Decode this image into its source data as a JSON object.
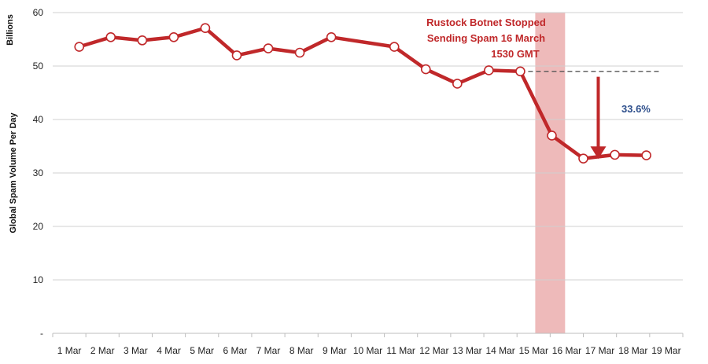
{
  "chart_data": {
    "type": "line",
    "title": "",
    "units_label": "Billions",
    "ylabel": "Global Spam  Volume Per Day",
    "xlabel": "",
    "ylim": [
      0,
      60
    ],
    "yticks": [
      {
        "value": 0,
        "label": "-"
      },
      {
        "value": 10,
        "label": "10"
      },
      {
        "value": 20,
        "label": "20"
      },
      {
        "value": 30,
        "label": "30"
      },
      {
        "value": 40,
        "label": "40"
      },
      {
        "value": 50,
        "label": "50"
      },
      {
        "value": 60,
        "label": "60"
      }
    ],
    "grid": true,
    "categories": [
      "1 Mar",
      "2 Mar",
      "3 Mar",
      "4 Mar",
      "5 Mar",
      "6 Mar",
      "7 Mar",
      "8 Mar",
      "9 Mar",
      "10 Mar",
      "11 Mar",
      "12 Mar",
      "13 Mar",
      "14 Mar",
      "15 Mar",
      "16 Mar",
      "17 Mar",
      "18 Mar",
      "19 Mar"
    ],
    "points": [
      {
        "x": 0.8,
        "y": 53.6
      },
      {
        "x": 1.75,
        "y": 55.4
      },
      {
        "x": 2.7,
        "y": 54.8
      },
      {
        "x": 3.65,
        "y": 55.4
      },
      {
        "x": 4.6,
        "y": 57.1
      },
      {
        "x": 5.55,
        "y": 52.0
      },
      {
        "x": 6.5,
        "y": 53.3
      },
      {
        "x": 7.45,
        "y": 52.5
      },
      {
        "x": 8.4,
        "y": 55.4
      },
      {
        "x": 10.3,
        "y": 53.6
      },
      {
        "x": 11.25,
        "y": 49.4
      },
      {
        "x": 12.2,
        "y": 46.7
      },
      {
        "x": 13.15,
        "y": 49.2
      },
      {
        "x": 14.1,
        "y": 49.0
      },
      {
        "x": 15.05,
        "y": 37.0
      },
      {
        "x": 16.0,
        "y": 32.7
      },
      {
        "x": 16.95,
        "y": 33.4
      },
      {
        "x": 17.9,
        "y": 33.3
      }
    ],
    "highlight_band": {
      "x_from": 14.55,
      "x_to": 15.45,
      "color": "#eebaba"
    },
    "reference_line": {
      "y": 49.0,
      "x_from": 14.1,
      "x_to": 18.3,
      "style": "dashed"
    },
    "drop_arrow": {
      "x": 16.45,
      "y_from": 48.0,
      "y_to": 33.2,
      "label": "33.6%"
    },
    "annotation_lines": [
      "Rustock Botnet Stopped",
      "Sending Spam  16 March",
      "1530 GMT"
    ],
    "colors": {
      "line": "#c0282a",
      "marker_fill": "#ffffff",
      "annotation": "#c0282a",
      "percent": "#2e4f8c",
      "grid": "#d0d0d0"
    }
  }
}
